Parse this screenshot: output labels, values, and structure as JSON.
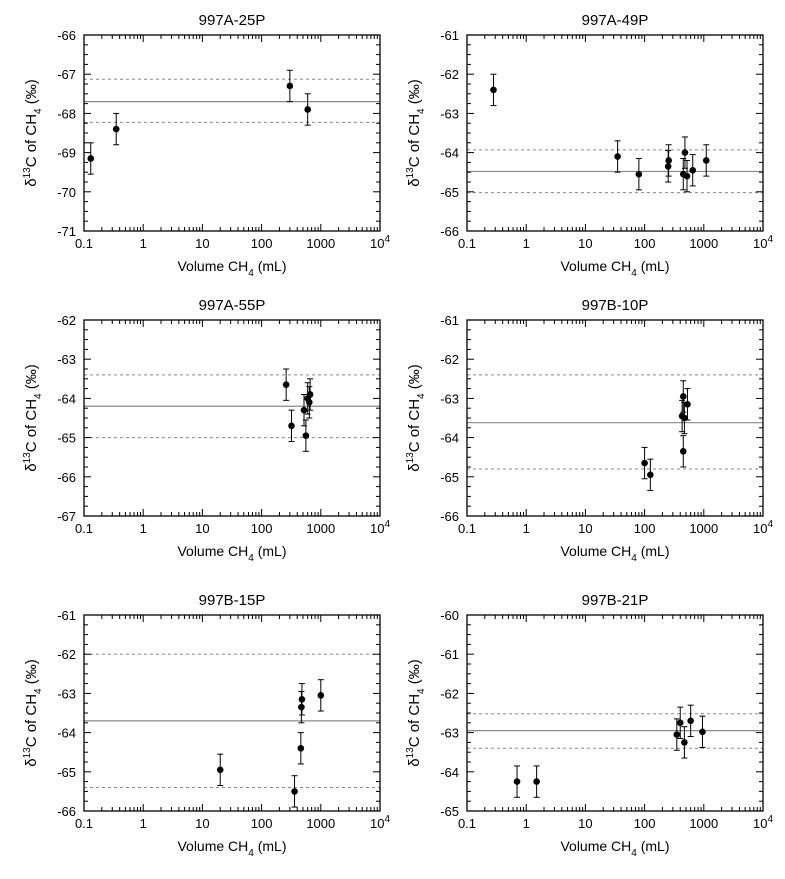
{
  "chart_data": [
    {
      "type": "scatter",
      "title": "997A-25P",
      "xlabel": "Volume CH_4 (mL)",
      "ylabel": "δ^13C of CH_4 (‰)",
      "x_scale": "log",
      "xlim": [
        0.1,
        10000
      ],
      "ylim": [
        -71,
        -66
      ],
      "x_tick_labels": [
        "0.1",
        "1",
        "10",
        "100",
        "1000",
        "10^4"
      ],
      "y_tick_labels": [
        "-71",
        "-70",
        "-69",
        "-68",
        "-67",
        "-66"
      ],
      "points": [
        {
          "x": 0.13,
          "y": -69.15,
          "err": 0.4
        },
        {
          "x": 0.35,
          "y": -68.4,
          "err": 0.4
        },
        {
          "x": 300,
          "y": -67.3,
          "err": 0.4
        },
        {
          "x": 600,
          "y": -67.9,
          "err": 0.4
        }
      ],
      "mean": -67.7,
      "band": [
        -68.23,
        -67.13
      ]
    },
    {
      "type": "scatter",
      "title": "997A-49P",
      "xlabel": "Volume CH_4 (mL)",
      "ylabel": "δ^13C of CH_4 (‰)",
      "x_scale": "log",
      "xlim": [
        0.1,
        10000
      ],
      "ylim": [
        -66,
        -61
      ],
      "x_tick_labels": [
        "0.1",
        "1",
        "10",
        "100",
        "1000",
        "10^4"
      ],
      "y_tick_labels": [
        "-66",
        "-65",
        "-64",
        "-63",
        "-62",
        "-61"
      ],
      "points": [
        {
          "x": 0.28,
          "y": -62.4,
          "err": 0.4
        },
        {
          "x": 35,
          "y": -64.1,
          "err": 0.4
        },
        {
          "x": 80,
          "y": -64.55,
          "err": 0.4
        },
        {
          "x": 250,
          "y": -64.35,
          "err": 0.4
        },
        {
          "x": 255,
          "y": -64.2,
          "err": 0.4
        },
        {
          "x": 450,
          "y": -64.55,
          "err": 0.4
        },
        {
          "x": 480,
          "y": -64.0,
          "err": 0.4
        },
        {
          "x": 520,
          "y": -64.6,
          "err": 0.4
        },
        {
          "x": 650,
          "y": -64.45,
          "err": 0.4
        },
        {
          "x": 1100,
          "y": -64.2,
          "err": 0.4
        }
      ],
      "mean": -64.48,
      "band": [
        -65.02,
        -63.93
      ]
    },
    {
      "type": "scatter",
      "title": "997A-55P",
      "xlabel": "Volume CH_4 (mL)",
      "ylabel": "δ^13C of CH_4 (‰)",
      "x_scale": "log",
      "xlim": [
        0.1,
        10000
      ],
      "ylim": [
        -67,
        -62
      ],
      "x_tick_labels": [
        "0.1",
        "1",
        "10",
        "100",
        "1000",
        "10^4"
      ],
      "y_tick_labels": [
        "-67",
        "-66",
        "-65",
        "-64",
        "-63",
        "-62"
      ],
      "points": [
        {
          "x": 260,
          "y": -63.65,
          "err": 0.4
        },
        {
          "x": 320,
          "y": -64.7,
          "err": 0.4
        },
        {
          "x": 520,
          "y": -64.3,
          "err": 0.4
        },
        {
          "x": 560,
          "y": -64.95,
          "err": 0.4
        },
        {
          "x": 600,
          "y": -64.0,
          "err": 0.4
        },
        {
          "x": 640,
          "y": -64.1,
          "err": 0.4
        },
        {
          "x": 660,
          "y": -63.9,
          "err": 0.4
        }
      ],
      "mean": -64.2,
      "band": [
        -65.0,
        -63.4
      ]
    },
    {
      "type": "scatter",
      "title": "997B-10P",
      "xlabel": "Volume CH_4 (mL)",
      "ylabel": "δ^13C of CH_4 (‰)",
      "x_scale": "log",
      "xlim": [
        0.1,
        10000
      ],
      "ylim": [
        -66,
        -61
      ],
      "x_tick_labels": [
        "0.1",
        "1",
        "10",
        "100",
        "1000",
        "10^4"
      ],
      "y_tick_labels": [
        "-66",
        "-65",
        "-64",
        "-63",
        "-62",
        "-61"
      ],
      "points": [
        {
          "x": 100,
          "y": -64.65,
          "err": 0.4
        },
        {
          "x": 125,
          "y": -64.95,
          "err": 0.4
        },
        {
          "x": 430,
          "y": -63.45,
          "err": 0.4
        },
        {
          "x": 450,
          "y": -62.95,
          "err": 0.4
        },
        {
          "x": 470,
          "y": -63.5,
          "err": 0.4
        },
        {
          "x": 450,
          "y": -64.35,
          "err": 0.4
        },
        {
          "x": 530,
          "y": -63.15,
          "err": 0.4
        }
      ],
      "mean": -63.62,
      "band": [
        -64.8,
        -62.4
      ]
    },
    {
      "type": "scatter",
      "title": "997B-15P",
      "xlabel": "Volume CH_4 (mL)",
      "ylabel": "δ^13C of CH_4 (‰)",
      "x_scale": "log",
      "xlim": [
        0.1,
        10000
      ],
      "ylim": [
        -66,
        -61
      ],
      "x_tick_labels": [
        "0.1",
        "1",
        "10",
        "100",
        "1000",
        "10^4"
      ],
      "y_tick_labels": [
        "-66",
        "-65",
        "-64",
        "-63",
        "-62",
        "-61"
      ],
      "points": [
        {
          "x": 20,
          "y": -64.95,
          "err": 0.4
        },
        {
          "x": 360,
          "y": -65.5,
          "err": 0.4
        },
        {
          "x": 460,
          "y": -64.4,
          "err": 0.4
        },
        {
          "x": 470,
          "y": -63.35,
          "err": 0.4
        },
        {
          "x": 480,
          "y": -63.15,
          "err": 0.4
        },
        {
          "x": 1000,
          "y": -63.05,
          "err": 0.4
        }
      ],
      "mean": -63.7,
      "band": [
        -65.4,
        -62.0
      ]
    },
    {
      "type": "scatter",
      "title": "997B-21P",
      "xlabel": "Volume CH_4 (mL)",
      "ylabel": "δ^13C of CH_4 (‰)",
      "x_scale": "log",
      "xlim": [
        0.1,
        10000
      ],
      "ylim": [
        -65,
        -60
      ],
      "x_tick_labels": [
        "0.1",
        "1",
        "10",
        "100",
        "1000",
        "10^4"
      ],
      "y_tick_labels": [
        "-65",
        "-64",
        "-63",
        "-62",
        "-61",
        "-60"
      ],
      "points": [
        {
          "x": 0.7,
          "y": -64.25,
          "err": 0.4
        },
        {
          "x": 1.5,
          "y": -64.25,
          "err": 0.4
        },
        {
          "x": 350,
          "y": -63.05,
          "err": 0.4
        },
        {
          "x": 400,
          "y": -62.75,
          "err": 0.4
        },
        {
          "x": 470,
          "y": -63.25,
          "err": 0.4
        },
        {
          "x": 600,
          "y": -62.7,
          "err": 0.4
        },
        {
          "x": 950,
          "y": -62.98,
          "err": 0.4
        }
      ],
      "mean": -62.95,
      "band": [
        -63.4,
        -62.52
      ]
    }
  ]
}
